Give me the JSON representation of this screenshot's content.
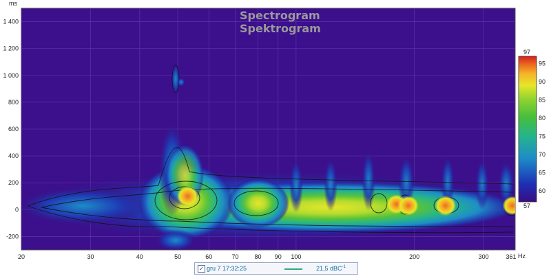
{
  "chart_data": {
    "type": "heatmap",
    "title": "Spectrogram",
    "subtitle": "Spektrogram",
    "xlabel_unit": "Hz",
    "ylabel_unit": "ms",
    "x_scale": "log",
    "xlim": [
      20,
      361
    ],
    "ylim": [
      -300,
      1500
    ],
    "x_ticks": [
      20,
      30,
      40,
      50,
      60,
      70,
      80,
      90,
      100,
      200,
      300
    ],
    "x_tick_labels": [
      "20",
      "30",
      "40",
      "50",
      "60",
      "70",
      "80",
      "90",
      "100",
      "200",
      "300"
    ],
    "x_end_label": "361",
    "y_ticks": [
      -200,
      0,
      200,
      400,
      600,
      800,
      1000,
      1200,
      1400
    ],
    "y_tick_labels": [
      "-200",
      "0",
      "200",
      "400",
      "600",
      "800",
      "1 000",
      "1 200",
      "1 400"
    ],
    "colorbar": {
      "min": 57,
      "max": 97,
      "ticks": [
        60,
        65,
        70,
        75,
        80,
        85,
        90,
        95
      ],
      "min_label": "57",
      "max_label": "97"
    },
    "peaks": [
      {
        "freq_hz": 53,
        "time_ms": 100,
        "level_db": 90
      },
      {
        "freq_hz": 51,
        "time_ms": 950,
        "level_db": 63
      },
      {
        "freq_hz": 180,
        "time_ms": 40,
        "level_db": 87
      },
      {
        "freq_hz": 193,
        "time_ms": 30,
        "level_db": 88
      },
      {
        "freq_hz": 240,
        "time_ms": 30,
        "level_db": 89
      },
      {
        "freq_hz": 355,
        "time_ms": 30,
        "level_db": 86
      }
    ],
    "grid": true,
    "colors": {
      "background": "#3c0f8c",
      "grid": "#5a2ea5",
      "scale": [
        "#3a0d82",
        "#1e2eb4",
        "#1e8cc8",
        "#25b48c",
        "#46be3c",
        "#8cd232",
        "#e6e628",
        "#f5b428",
        "#eb6e1e",
        "#d71e1e"
      ]
    }
  },
  "legend": {
    "checked": "✓",
    "name": "gru 7 17:32:25",
    "value": "21,5 dBC",
    "value_suffix": "-1",
    "line_color": "#2cab7a"
  }
}
